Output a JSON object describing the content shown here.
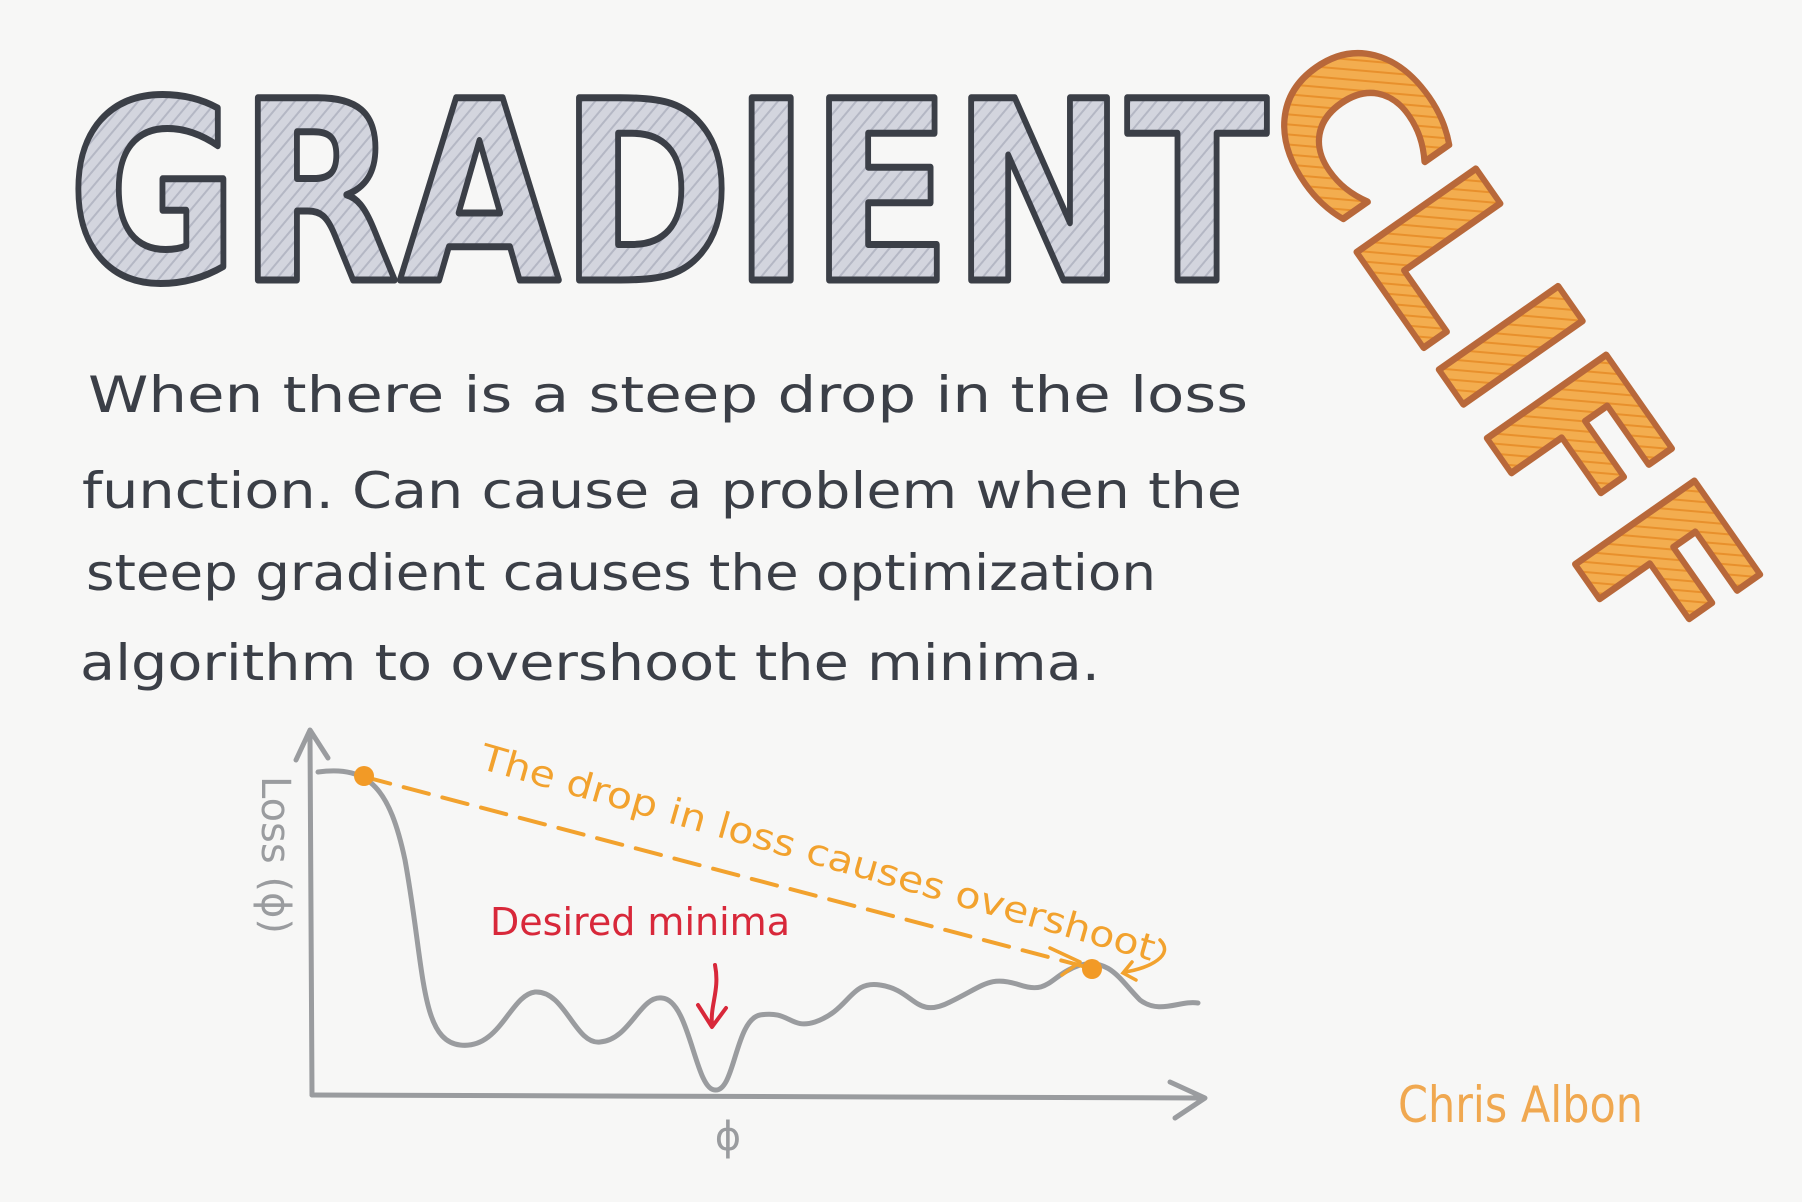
{
  "title": {
    "word_main": "GRADIENT",
    "word_cliff": "CLIFF"
  },
  "description": {
    "lines": [
      "When there is a steep drop in the loss",
      "function. Can cause a problem when the",
      "steep gradient causes the optimization",
      "algorithm to overshoot the minima."
    ]
  },
  "diagram": {
    "y_axis_label": "Loss (ϕ)",
    "x_axis_label": "ϕ",
    "overshoot_annotation": "The drop in loss causes overshoot",
    "minima_annotation": "Desired minima"
  },
  "author": "Chris Albon",
  "colors": {
    "ink": "#3b3f47",
    "title_fill": "#c9ccd6",
    "cliff_fill": "#f0a03a",
    "cliff_outline": "#b8683a",
    "curve": "#9a9c9f",
    "orange": "#f2a22e",
    "red": "#d8283a",
    "author": "#f0a850"
  }
}
